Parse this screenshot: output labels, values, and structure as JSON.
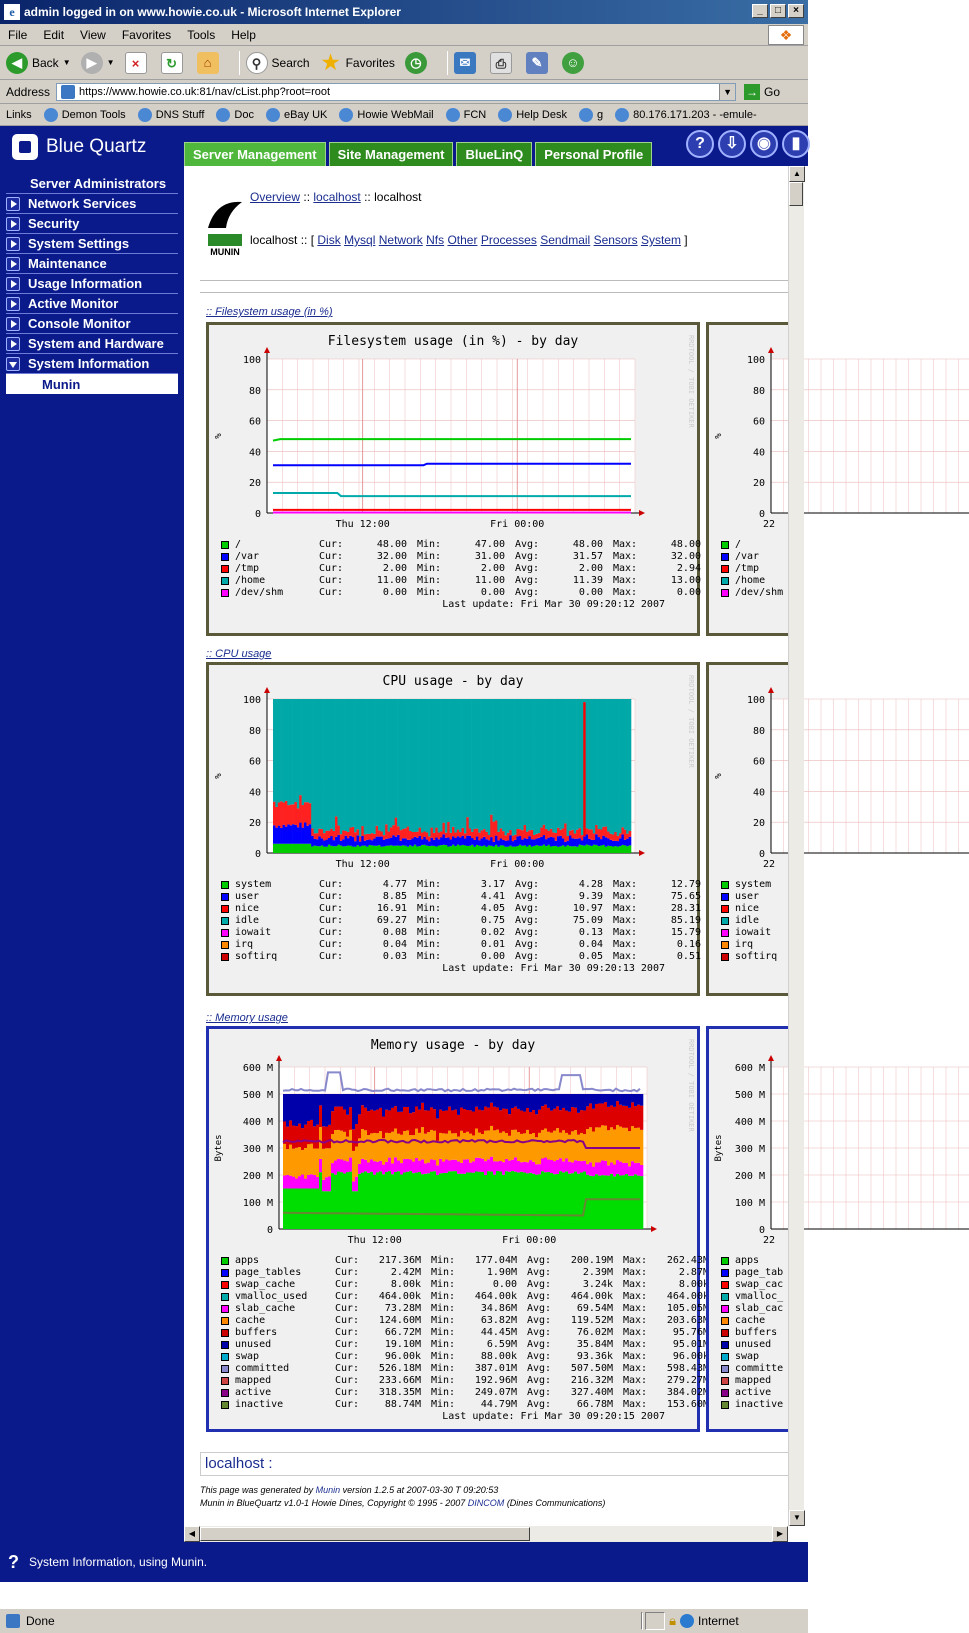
{
  "window": {
    "title": "admin logged in on www.howie.co.uk - Microsoft Internet Explorer"
  },
  "menu": [
    "File",
    "Edit",
    "View",
    "Favorites",
    "Tools",
    "Help"
  ],
  "toolbar": {
    "back": "Back",
    "search": "Search",
    "favorites": "Favorites"
  },
  "address": {
    "label": "Address",
    "url": "https://www.howie.co.uk:81/nav/cList.php?root=root",
    "go": "Go"
  },
  "links": {
    "label": "Links",
    "items": [
      "Demon Tools",
      "DNS Stuff",
      "Doc",
      "eBay UK",
      "Howie WebMail",
      "FCN",
      "Help Desk",
      "g",
      "80.176.171.203 - -emule-"
    ]
  },
  "app": {
    "brand": "Blue Quartz",
    "tabs": [
      "Server Management",
      "Site Management",
      "BlueLinQ",
      "Personal Profile"
    ],
    "header_icons": [
      "help-icon",
      "logout-icon",
      "view-icon",
      "info-icon"
    ]
  },
  "sidebar": {
    "items": [
      "Server Administrators",
      "Network Services",
      "Security",
      "System Settings",
      "Maintenance",
      "Usage Information",
      "Active Monitor",
      "Console Monitor",
      "System and Hardware",
      "System Information"
    ],
    "sub": "Munin"
  },
  "munin": {
    "crumb": {
      "overview": "Overview",
      "sep1": "::",
      "localhost1": "localhost",
      "sep2": "::",
      "localhost2": "localhost"
    },
    "host_label": "localhost :: [",
    "host_label_end": "]",
    "categories": [
      "Disk",
      "Mysql",
      "Network",
      "Nfs",
      "Other",
      "Processes",
      "Sendmail",
      "Sensors",
      "System"
    ],
    "logo_text": "MUNIN"
  },
  "sections": {
    "fs": ":: Filesystem usage (in %)",
    "cpu": ":: CPU usage",
    "mem": ":: Memory usage"
  },
  "graphs": {
    "fs": {
      "title": "Filesystem usage (in %) - by day",
      "ylabel": "%",
      "yticks": [
        "100",
        "80",
        "60",
        "40",
        "20",
        "0"
      ],
      "xticks": [
        "Thu 12:00",
        "Fri 00:00"
      ],
      "right_yticks": [
        "100",
        "80",
        "60",
        "40",
        "20",
        "0"
      ],
      "right_xtick": "22",
      "watermark": "RRDTOOL / TOBI OETIKER",
      "legend": [
        {
          "name": "/",
          "color": "#00cc00",
          "cur": "48.00",
          "min": "47.00",
          "avg": "48.00",
          "max": "48.00"
        },
        {
          "name": "/var",
          "color": "#0000ff",
          "cur": "32.00",
          "min": "31.00",
          "avg": "31.57",
          "max": "32.00"
        },
        {
          "name": "/tmp",
          "color": "#ff0000",
          "cur": "2.00",
          "min": "2.00",
          "avg": "2.00",
          "max": "2.94"
        },
        {
          "name": "/home",
          "color": "#00aaaa",
          "cur": "11.00",
          "min": "11.00",
          "avg": "11.39",
          "max": "13.00"
        },
        {
          "name": "/dev/shm",
          "color": "#ff00ff",
          "cur": "0.00",
          "min": "0.00",
          "avg": "0.00",
          "max": "0.00"
        }
      ],
      "last_update": "Last update: Fri Mar 30 09:20:12 2007"
    },
    "cpu": {
      "title": "CPU usage - by day",
      "ylabel": "%",
      "yticks": [
        "100",
        "80",
        "60",
        "40",
        "20",
        "0"
      ],
      "xticks": [
        "Thu 12:00",
        "Fri 00:00"
      ],
      "right_yticks": [
        "100",
        "80",
        "60",
        "40",
        "20",
        "0"
      ],
      "right_xtick": "22",
      "watermark": "RRDTOOL / TOBI OETIKER",
      "legend": [
        {
          "name": "system",
          "color": "#00cc00",
          "cur": "4.77",
          "min": "3.17",
          "avg": "4.28",
          "max": "12.79"
        },
        {
          "name": "user",
          "color": "#0000ff",
          "cur": "8.85",
          "min": "4.41",
          "avg": "9.39",
          "max": "75.65"
        },
        {
          "name": "nice",
          "color": "#ff0000",
          "cur": "16.91",
          "min": "4.05",
          "avg": "10.97",
          "max": "28.31"
        },
        {
          "name": "idle",
          "color": "#00aaaa",
          "cur": "69.27",
          "min": "0.75",
          "avg": "75.09",
          "max": "85.19"
        },
        {
          "name": "iowait",
          "color": "#ff00ff",
          "cur": "0.08",
          "min": "0.02",
          "avg": "0.13",
          "max": "15.79"
        },
        {
          "name": "irq",
          "color": "#ff8800",
          "cur": "0.04",
          "min": "0.01",
          "avg": "0.04",
          "max": "0.16"
        },
        {
          "name": "softirq",
          "color": "#cc0000",
          "cur": "0.03",
          "min": "0.00",
          "avg": "0.05",
          "max": "0.51"
        }
      ],
      "last_update": "Last update: Fri Mar 30 09:20:13 2007"
    },
    "mem": {
      "title": "Memory usage - by day",
      "ylabel": "Bytes",
      "yticks": [
        "600 M",
        "500 M",
        "400 M",
        "300 M",
        "200 M",
        "100 M",
        "0"
      ],
      "xticks": [
        "Thu 12:00",
        "Fri 00:00"
      ],
      "right_yticks": [
        "600 M",
        "500 M",
        "400 M",
        "300 M",
        "200 M",
        "100 M",
        "0"
      ],
      "right_xtick": "22",
      "watermark": "RRDTOOL / TOBI OETIKER",
      "legend": [
        {
          "name": "apps",
          "color": "#00cc00",
          "cur": "217.36M",
          "min": "177.04M",
          "avg": "200.19M",
          "max": "262.43M"
        },
        {
          "name": "page_tables",
          "color": "#0000ff",
          "cur": "2.42M",
          "min": "1.90M",
          "avg": "2.39M",
          "max": "2.87M"
        },
        {
          "name": "swap_cache",
          "color": "#ff0000",
          "cur": "8.00k",
          "min": "0.00",
          "avg": "3.24k",
          "max": "8.00k"
        },
        {
          "name": "vmalloc_used",
          "color": "#00aaaa",
          "cur": "464.00k",
          "min": "464.00k",
          "avg": "464.00k",
          "max": "464.00k"
        },
        {
          "name": "slab_cache",
          "color": "#ff00ff",
          "cur": "73.28M",
          "min": "34.86M",
          "avg": "69.54M",
          "max": "105.05M"
        },
        {
          "name": "cache",
          "color": "#ff8800",
          "cur": "124.60M",
          "min": "63.82M",
          "avg": "119.52M",
          "max": "203.63M"
        },
        {
          "name": "buffers",
          "color": "#cc0000",
          "cur": "66.72M",
          "min": "44.45M",
          "avg": "76.02M",
          "max": "95.76M"
        },
        {
          "name": "unused",
          "color": "#0000aa",
          "cur": "19.10M",
          "min": "6.59M",
          "avg": "35.84M",
          "max": "95.01M"
        },
        {
          "name": "swap",
          "color": "#00aacc",
          "cur": "96.00k",
          "min": "88.00k",
          "avg": "93.36k",
          "max": "96.00k"
        },
        {
          "name": "committed",
          "color": "#8888cc",
          "cur": "526.18M",
          "min": "387.01M",
          "avg": "507.50M",
          "max": "598.43M"
        },
        {
          "name": "mapped",
          "color": "#cc4444",
          "cur": "233.66M",
          "min": "192.96M",
          "avg": "216.32M",
          "max": "279.27M"
        },
        {
          "name": "active",
          "color": "#880088",
          "cur": "318.35M",
          "min": "249.07M",
          "avg": "327.40M",
          "max": "384.02M"
        },
        {
          "name": "inactive",
          "color": "#668833",
          "cur": "88.74M",
          "min": "44.79M",
          "avg": "66.78M",
          "max": "153.60M"
        }
      ],
      "right_legend": [
        "apps",
        "page_tab",
        "swap_cac",
        "vmalloc_",
        "slab_cac",
        "cache",
        "buffers",
        "unused",
        "swap",
        "committe",
        "mapped",
        "active",
        "inactive"
      ],
      "last_update": "Last update: Fri Mar 30 09:20:15 2007"
    }
  },
  "legend_labels": {
    "cur": "Cur:",
    "min": "Min:",
    "avg": "Avg:",
    "max": "Max:"
  },
  "footer": {
    "host": "localhost",
    "host_sep": ":",
    "gen_prefix": "This page was generated by",
    "munin_link": "Munin",
    "gen_suffix": "version 1.2.5 at 2007-03-30 T 09:20:53",
    "credit_prefix": "Munin in BlueQuartz v1.0-1 Howie Dines, Copyright © 1995 - 2007",
    "dincom": "DINCOM",
    "credit_suffix": "(Dines Communications)"
  },
  "help": "System Information, using Munin.",
  "status": {
    "text": "Done",
    "zone": "Internet"
  },
  "chart_data": [
    {
      "type": "line",
      "title": "Filesystem usage (in %) - by day",
      "ylabel": "%",
      "ylim": [
        0,
        100
      ],
      "x": [
        "Thu 12:00",
        "Fri 00:00"
      ],
      "series": [
        {
          "name": "/",
          "start": 47,
          "end": 48
        },
        {
          "name": "/var",
          "start": 31,
          "end": 32
        },
        {
          "name": "/tmp",
          "start": 2,
          "end": 2
        },
        {
          "name": "/home",
          "start": 13,
          "end": 11
        },
        {
          "name": "/dev/shm",
          "start": 0,
          "end": 0
        }
      ]
    },
    {
      "type": "area",
      "title": "CPU usage - by day",
      "ylabel": "%",
      "ylim": [
        0,
        100
      ],
      "x": [
        "Thu 12:00",
        "Fri 00:00"
      ],
      "series": [
        {
          "name": "system",
          "avg": 4.28
        },
        {
          "name": "user",
          "avg": 9.39
        },
        {
          "name": "nice",
          "avg": 10.97
        },
        {
          "name": "idle",
          "avg": 75.09
        }
      ]
    },
    {
      "type": "area",
      "title": "Memory usage - by day",
      "ylabel": "Bytes",
      "ylim": [
        0,
        600
      ],
      "x": [
        "Thu 12:00",
        "Fri 00:00"
      ],
      "series": [
        {
          "name": "apps",
          "avg": 200.19
        },
        {
          "name": "slab_cache",
          "avg": 69.54
        },
        {
          "name": "cache",
          "avg": 119.52
        },
        {
          "name": "buffers",
          "avg": 76.02
        },
        {
          "name": "unused",
          "avg": 35.84
        },
        {
          "name": "committed",
          "avg": 507.5
        },
        {
          "name": "active",
          "avg": 327.4
        },
        {
          "name": "inactive",
          "avg": 66.78
        }
      ]
    }
  ]
}
